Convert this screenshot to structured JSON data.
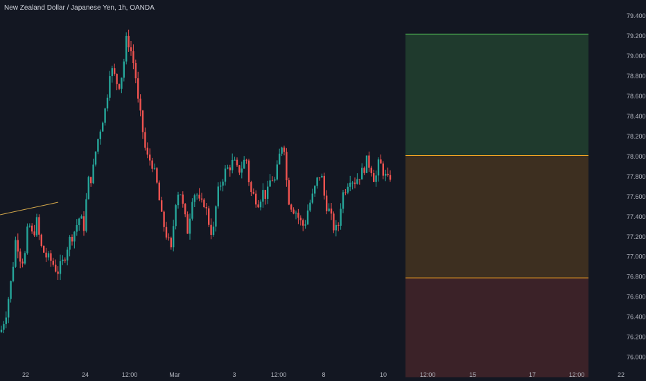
{
  "symbol_title": "New Zealand Dollar / Japanese Yen, 1h, OANDA",
  "colors": {
    "background": "#131722",
    "up": "#26a69a",
    "down": "#ef5350",
    "axis_text": "#b2b5be",
    "profit_zone": "#1f3a2d",
    "profit_line": "#4caf50",
    "entry_zone": "#3d2f20",
    "entry_line": "#f5a623",
    "loss_zone": "#3b2228",
    "trendline": "#d4a84b"
  },
  "chart_data": {
    "type": "candlestick",
    "ylim": [
      75.9,
      79.45
    ],
    "y_ticks": [
      "79.400",
      "79.200",
      "79.000",
      "78.800",
      "78.600",
      "78.400",
      "78.200",
      "78.000",
      "77.800",
      "77.600",
      "77.400",
      "77.200",
      "77.000",
      "76.800",
      "76.600",
      "76.400",
      "76.200",
      "76.000"
    ],
    "x_ticks": [
      "22",
      "24",
      "12:00",
      "Mar",
      "3",
      "12:00",
      "8",
      "10",
      "12:00",
      "15",
      "17",
      "12:00",
      "22"
    ],
    "price_path": [
      [
        0,
        76.25
      ],
      [
        8,
        76.45
      ],
      [
        16,
        76.8
      ],
      [
        22,
        77.2
      ],
      [
        28,
        77.0
      ],
      [
        34,
        76.95
      ],
      [
        40,
        77.35
      ],
      [
        46,
        77.2
      ],
      [
        52,
        77.35
      ],
      [
        58,
        77.1
      ],
      [
        66,
        77.0
      ],
      [
        74,
        76.95
      ],
      [
        82,
        76.85
      ],
      [
        90,
        76.95
      ],
      [
        98,
        77.15
      ],
      [
        106,
        77.25
      ],
      [
        114,
        77.4
      ],
      [
        120,
        77.3
      ],
      [
        126,
        77.75
      ],
      [
        132,
        77.8
      ],
      [
        138,
        78.1
      ],
      [
        146,
        78.35
      ],
      [
        152,
        78.5
      ],
      [
        158,
        78.9
      ],
      [
        164,
        78.8
      ],
      [
        170,
        78.7
      ],
      [
        176,
        78.85
      ],
      [
        182,
        79.2
      ],
      [
        188,
        79.05
      ],
      [
        194,
        78.85
      ],
      [
        198,
        78.55
      ],
      [
        204,
        78.3
      ],
      [
        210,
        78.0
      ],
      [
        218,
        77.95
      ],
      [
        226,
        77.7
      ],
      [
        232,
        77.4
      ],
      [
        240,
        77.2
      ],
      [
        246,
        77.05
      ],
      [
        252,
        77.55
      ],
      [
        258,
        77.7
      ],
      [
        264,
        77.45
      ],
      [
        270,
        77.25
      ],
      [
        276,
        77.6
      ],
      [
        282,
        77.65
      ],
      [
        288,
        77.5
      ],
      [
        294,
        77.55
      ],
      [
        300,
        77.35
      ],
      [
        306,
        77.2
      ],
      [
        312,
        77.6
      ],
      [
        318,
        77.75
      ],
      [
        324,
        77.85
      ],
      [
        330,
        77.9
      ],
      [
        336,
        77.95
      ],
      [
        342,
        77.85
      ],
      [
        348,
        77.9
      ],
      [
        354,
        78.0
      ],
      [
        360,
        77.65
      ],
      [
        366,
        77.6
      ],
      [
        372,
        77.55
      ],
      [
        378,
        77.65
      ],
      [
        384,
        77.6
      ],
      [
        390,
        77.8
      ],
      [
        396,
        77.75
      ],
      [
        402,
        78.0
      ],
      [
        408,
        78.2
      ],
      [
        414,
        77.6
      ],
      [
        420,
        77.5
      ],
      [
        426,
        77.45
      ],
      [
        432,
        77.35
      ],
      [
        438,
        77.3
      ],
      [
        444,
        77.5
      ],
      [
        450,
        77.6
      ],
      [
        456,
        77.75
      ],
      [
        462,
        77.85
      ],
      [
        468,
        77.55
      ],
      [
        474,
        77.45
      ],
      [
        480,
        77.3
      ],
      [
        486,
        77.25
      ],
      [
        492,
        77.6
      ],
      [
        498,
        77.7
      ],
      [
        504,
        77.8
      ],
      [
        510,
        77.75
      ],
      [
        516,
        77.8
      ],
      [
        522,
        77.85
      ],
      [
        528,
        77.95
      ],
      [
        534,
        77.9
      ],
      [
        540,
        77.75
      ],
      [
        546,
        77.95
      ],
      [
        552,
        77.85
      ],
      [
        558,
        77.75
      ],
      [
        565,
        77.85
      ]
    ],
    "position_tool": {
      "take_profit": 79.22,
      "entry": 78.01,
      "stop_loss": 76.79,
      "bottom": 75.8,
      "x_start_label": "10"
    },
    "trendline": {
      "from": 77.52,
      "to": 77.55
    }
  }
}
